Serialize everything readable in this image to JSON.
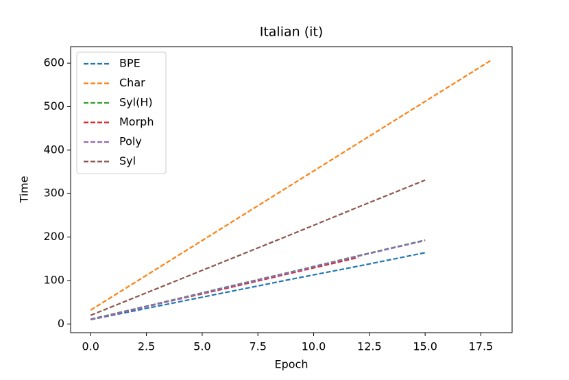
{
  "chart_data": {
    "type": "line",
    "title": "Italian (it)",
    "x_label": "Epoch",
    "y_label": "Time",
    "xlim": [
      -0.9,
      18.9
    ],
    "ylim": [
      -20,
      638
    ],
    "xticks": [
      {
        "value": 0,
        "label": "0.0"
      },
      2.5,
      {
        "value": 5,
        "label": "5.0"
      },
      7.5,
      {
        "value": 10,
        "label": "10.0"
      },
      12.5,
      {
        "value": 15,
        "label": "15.0"
      },
      17.5
    ],
    "yticks": [
      0,
      100,
      200,
      300,
      400,
      500,
      600
    ],
    "legend": "upper left",
    "line_style": "dashed",
    "series": [
      {
        "name": "BPE",
        "color": "#1f77b4",
        "x": [
          0,
          3,
          6,
          9,
          12,
          15
        ],
        "values": [
          10,
          41,
          72,
          103,
          133,
          164
        ]
      },
      {
        "name": "Char",
        "color": "#ff7f0e",
        "x": [
          0,
          3,
          6,
          9,
          12,
          15,
          18
        ],
        "values": [
          32,
          128,
          224,
          320,
          416,
          512,
          608
        ]
      },
      {
        "name": "Syl(H)",
        "color": "#2ca02c",
        "x": [
          0,
          3,
          6,
          9,
          12,
          15
        ],
        "values": [
          11,
          47,
          84,
          120,
          157,
          193
        ]
      },
      {
        "name": "Morph",
        "color": "#d62728",
        "x": [
          0,
          3,
          6,
          9,
          12
        ],
        "values": [
          10,
          46,
          81,
          117,
          153
        ]
      },
      {
        "name": "Poly",
        "color": "#9467bd",
        "x": [
          0,
          3,
          6,
          9,
          12,
          15
        ],
        "values": [
          10,
          46,
          83,
          119,
          156,
          192
        ]
      },
      {
        "name": "Syl",
        "color": "#8c564b",
        "x": [
          0,
          3,
          6,
          9,
          12,
          15
        ],
        "values": [
          20,
          82,
          144,
          206,
          269,
          331
        ]
      }
    ]
  }
}
